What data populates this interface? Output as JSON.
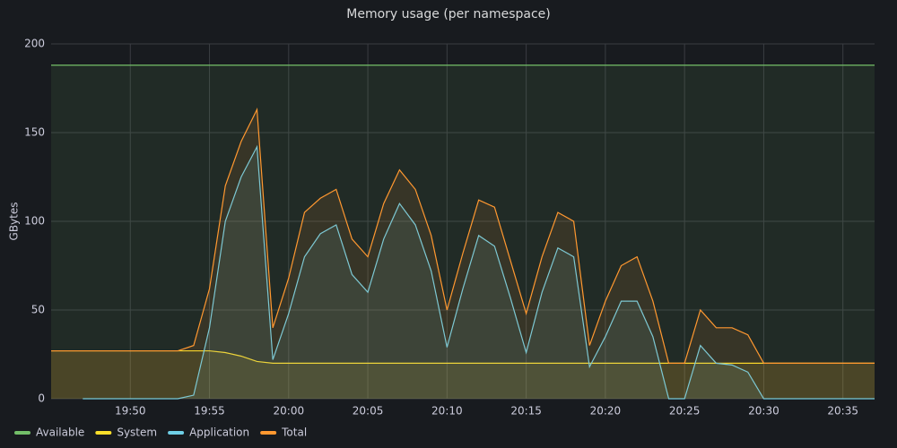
{
  "chart_data": {
    "type": "line",
    "title": "Memory usage (per namespace)",
    "y_label": "GBytes",
    "x": [
      "19:45",
      "19:46",
      "19:47",
      "19:48",
      "19:49",
      "19:50",
      "19:51",
      "19:52",
      "19:53",
      "19:54",
      "19:55",
      "19:56",
      "19:57",
      "19:58",
      "19:59",
      "20:00",
      "20:01",
      "20:02",
      "20:03",
      "20:04",
      "20:05",
      "20:06",
      "20:07",
      "20:08",
      "20:09",
      "20:10",
      "20:11",
      "20:12",
      "20:13",
      "20:14",
      "20:15",
      "20:16",
      "20:17",
      "20:18",
      "20:19",
      "20:20",
      "20:21",
      "20:22",
      "20:23",
      "20:24",
      "20:25",
      "20:26",
      "20:27",
      "20:28",
      "20:29",
      "20:30",
      "20:31",
      "20:32",
      "20:33",
      "20:34",
      "20:35",
      "20:36",
      "20:37"
    ],
    "xlim": [
      "19:45",
      "20:37"
    ],
    "xticks": [
      "19:50",
      "19:55",
      "20:00",
      "20:05",
      "20:10",
      "20:15",
      "20:20",
      "20:25",
      "20:30",
      "20:35"
    ],
    "ylim": [
      0,
      200
    ],
    "yticks": [
      0,
      50,
      100,
      150,
      200
    ],
    "grid": true,
    "legend": "bottom-left",
    "series": [
      {
        "name": "Available",
        "color": "#73bf69",
        "values": [
          188,
          188,
          188,
          188,
          188,
          188,
          188,
          188,
          188,
          188,
          188,
          188,
          188,
          188,
          188,
          188,
          188,
          188,
          188,
          188,
          188,
          188,
          188,
          188,
          188,
          188,
          188,
          188,
          188,
          188,
          188,
          188,
          188,
          188,
          188,
          188,
          188,
          188,
          188,
          188,
          188,
          188,
          188,
          188,
          188,
          188,
          188,
          188,
          188,
          188,
          188,
          188,
          188
        ]
      },
      {
        "name": "System",
        "color": "#fade2a",
        "values": [
          27,
          27,
          27,
          27,
          27,
          27,
          27,
          27,
          27,
          27,
          27,
          26,
          24,
          21,
          20,
          20,
          20,
          20,
          20,
          20,
          20,
          20,
          20,
          20,
          20,
          20,
          20,
          20,
          20,
          20,
          20,
          20,
          20,
          20,
          20,
          20,
          20,
          20,
          20,
          20,
          20,
          20,
          20,
          20,
          20,
          20,
          20,
          20,
          20,
          20,
          20,
          20,
          20
        ]
      },
      {
        "name": "Application",
        "color": "#6fcfe6",
        "values": [
          null,
          null,
          0,
          0,
          0,
          0,
          0,
          0,
          0,
          2,
          40,
          100,
          125,
          142,
          22,
          48,
          80,
          93,
          98,
          70,
          60,
          90,
          110,
          98,
          72,
          29,
          62,
          92,
          86,
          57,
          26,
          60,
          85,
          80,
          18,
          35,
          55,
          55,
          35,
          0,
          0,
          30,
          20,
          19,
          15,
          0,
          0,
          0,
          0,
          0,
          0,
          0,
          0
        ]
      },
      {
        "name": "Total",
        "color": "#ff9830",
        "values": [
          27,
          27,
          27,
          27,
          27,
          27,
          27,
          27,
          27,
          30,
          62,
          120,
          145,
          163,
          40,
          68,
          105,
          113,
          118,
          90,
          80,
          110,
          129,
          118,
          92,
          50,
          82,
          112,
          108,
          78,
          48,
          80,
          105,
          100,
          30,
          55,
          75,
          80,
          55,
          20,
          20,
          50,
          40,
          40,
          36,
          20,
          20,
          20,
          20,
          20,
          20,
          20,
          20
        ]
      }
    ]
  }
}
